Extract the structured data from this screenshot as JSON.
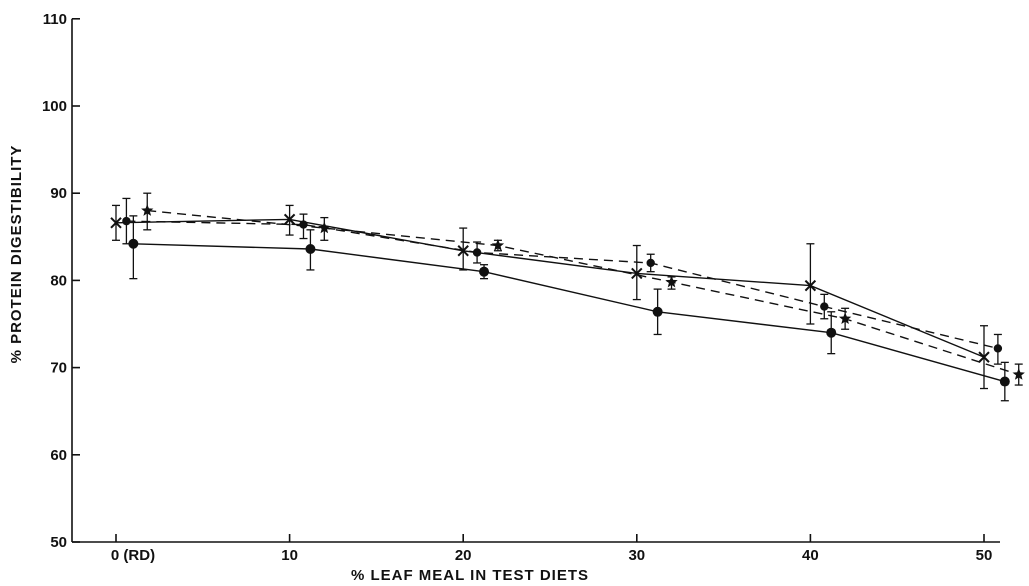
{
  "chart_data": {
    "type": "line",
    "xlabel": "% LEAF MEAL IN TEST DIETS",
    "ylabel": "% PROTEIN DIGESTIBILITY",
    "xlim": [
      0,
      50
    ],
    "ylim": [
      50,
      110
    ],
    "x_ticks": [
      {
        "value": 0,
        "label": "0 (RD)"
      },
      {
        "value": 10,
        "label": "10"
      },
      {
        "value": 20,
        "label": "20"
      },
      {
        "value": 30,
        "label": "30"
      },
      {
        "value": 40,
        "label": "40"
      },
      {
        "value": 50,
        "label": "50"
      }
    ],
    "y_ticks": [
      {
        "value": 50,
        "label": "50"
      },
      {
        "value": 60,
        "label": "60"
      },
      {
        "value": 70,
        "label": "70"
      },
      {
        "value": 80,
        "label": "80"
      },
      {
        "value": 90,
        "label": "90"
      },
      {
        "value": 100,
        "label": "100"
      },
      {
        "value": 110,
        "label": "110"
      }
    ],
    "grid": false,
    "series": [
      {
        "marker": "cross",
        "line": "solid",
        "points": [
          {
            "x": 0,
            "y": 86.6,
            "lo": 84.6,
            "hi": 88.6
          },
          {
            "x": 10,
            "y": 87.0,
            "lo": 85.2,
            "hi": 88.6
          },
          {
            "x": 20,
            "y": 83.4,
            "lo": 81.2,
            "hi": 86.0
          },
          {
            "x": 30,
            "y": 80.8,
            "lo": 77.8,
            "hi": 84.0
          },
          {
            "x": 40,
            "y": 79.4,
            "lo": 75.0,
            "hi": 84.2
          },
          {
            "x": 50,
            "y": 71.2,
            "lo": 67.6,
            "hi": 74.8
          }
        ]
      },
      {
        "marker": "circle",
        "line": "dashed",
        "points": [
          {
            "x": 0.6,
            "y": 86.8,
            "lo": 84.2,
            "hi": 89.4
          },
          {
            "x": 10.8,
            "y": 86.4,
            "lo": 84.8,
            "hi": 87.6
          },
          {
            "x": 20.8,
            "y": 83.2,
            "lo": 82.0,
            "hi": 84.4
          },
          {
            "x": 30.8,
            "y": 82.0,
            "lo": 81.0,
            "hi": 83.0
          },
          {
            "x": 40.8,
            "y": 77.0,
            "lo": 75.6,
            "hi": 78.4
          },
          {
            "x": 50.8,
            "y": 72.2,
            "lo": 70.4,
            "hi": 73.8
          }
        ]
      },
      {
        "marker": "star",
        "line": "dashed",
        "points": [
          {
            "x": 1.8,
            "y": 88.0,
            "lo": 85.8,
            "hi": 90.0
          },
          {
            "x": 12.0,
            "y": 86.0,
            "lo": 84.6,
            "hi": 87.2
          },
          {
            "x": 22.0,
            "y": 84.0,
            "lo": 83.4,
            "hi": 84.6
          },
          {
            "x": 32.0,
            "y": 79.8,
            "lo": 79.0,
            "hi": 80.4
          },
          {
            "x": 42.0,
            "y": 75.6,
            "lo": 74.4,
            "hi": 76.8
          },
          {
            "x": 52.0,
            "y": 69.2,
            "lo": 68.0,
            "hi": 70.4
          }
        ]
      },
      {
        "marker": "filled",
        "line": "solid",
        "points": [
          {
            "x": 1.0,
            "y": 84.2,
            "lo": 80.2,
            "hi": 87.4
          },
          {
            "x": 11.2,
            "y": 83.6,
            "lo": 81.2,
            "hi": 85.8
          },
          {
            "x": 21.2,
            "y": 81.0,
            "lo": 80.2,
            "hi": 81.8
          },
          {
            "x": 31.2,
            "y": 76.4,
            "lo": 73.8,
            "hi": 79.0
          },
          {
            "x": 41.2,
            "y": 74.0,
            "lo": 71.6,
            "hi": 76.4
          },
          {
            "x": 51.2,
            "y": 68.4,
            "lo": 66.2,
            "hi": 70.6
          }
        ]
      }
    ]
  }
}
